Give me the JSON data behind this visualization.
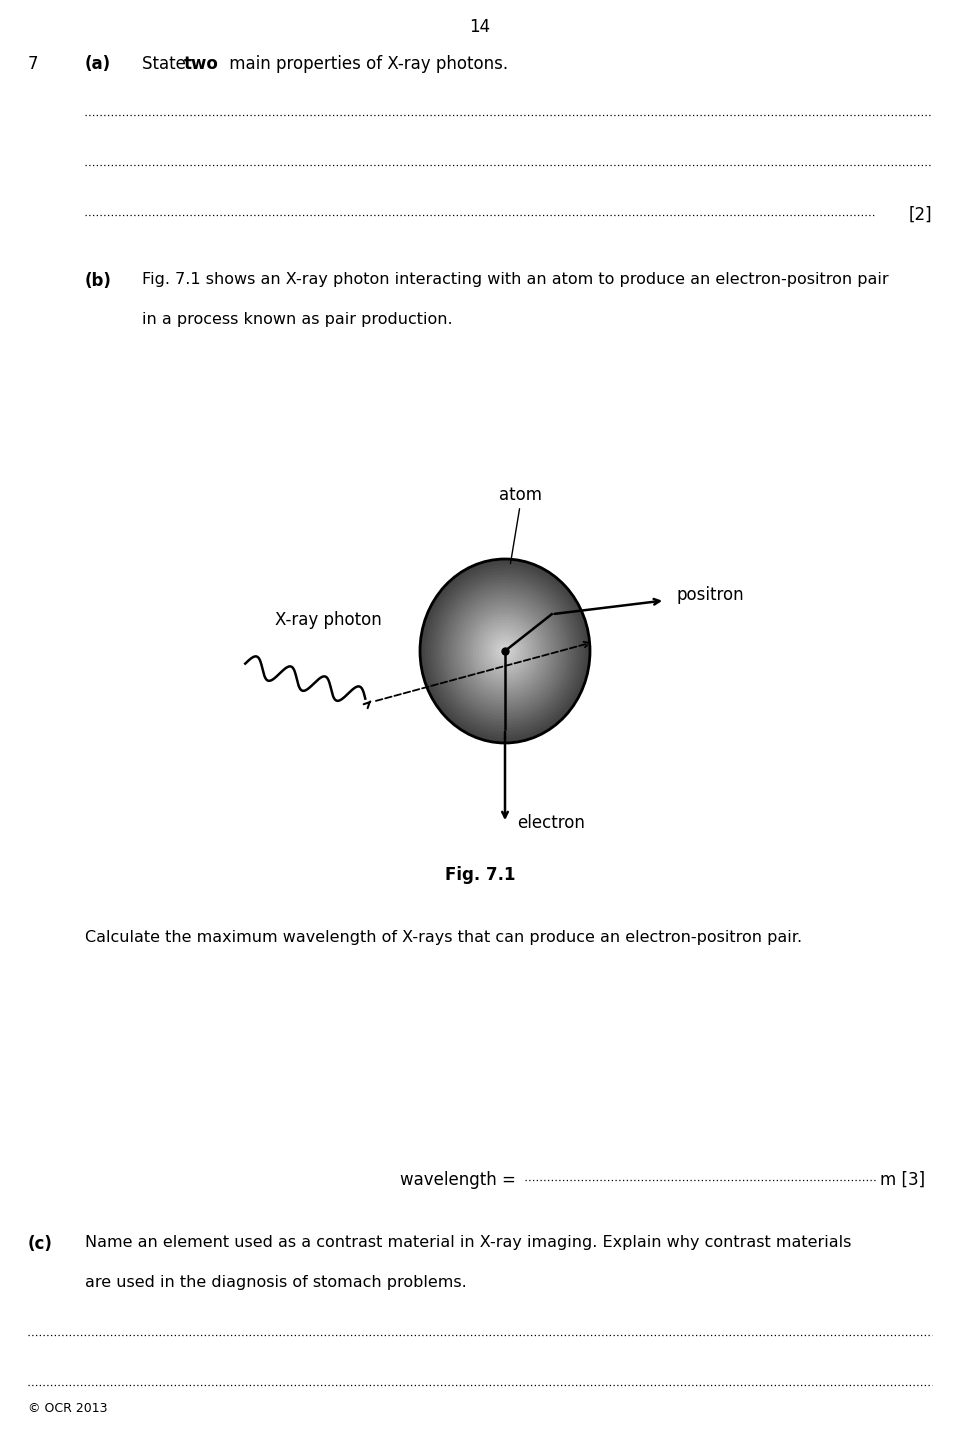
{
  "page_number": "14",
  "background_color": "#ffffff",
  "text_color": "#000000",
  "fig_width": 9.6,
  "fig_height": 14.31,
  "question_number": "7",
  "atom_label": "atom",
  "xray_label": "X-ray photon",
  "positron_label": "positron",
  "electron_label": "electron",
  "fig_label": "Fig. 7.1",
  "copyright": "© OCR 2013"
}
